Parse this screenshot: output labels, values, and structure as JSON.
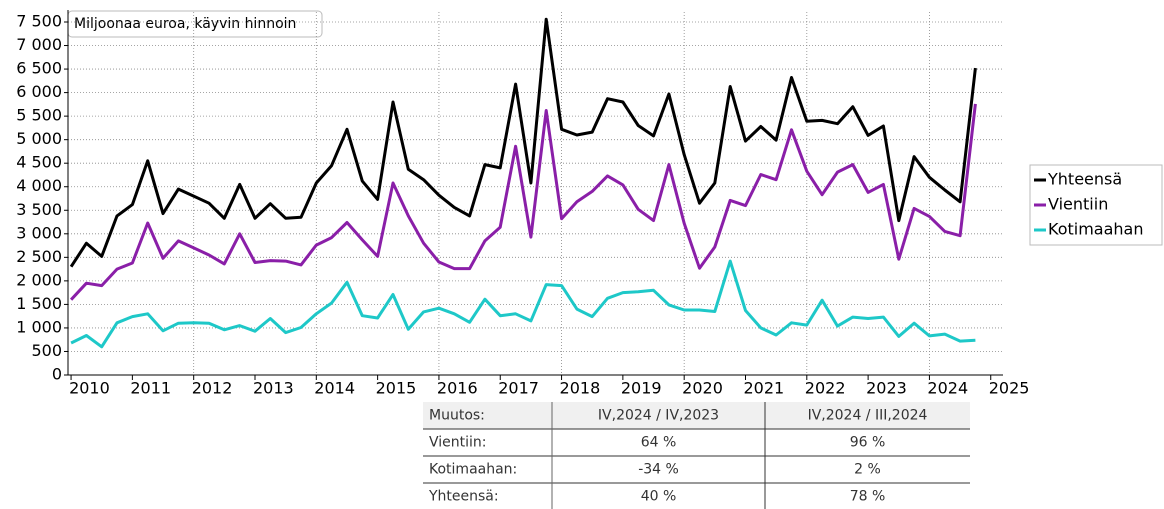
{
  "chart_data": {
    "type": "line",
    "annotation": "Miljoonaa euroa, käyvin hinnoin",
    "x": [
      2010,
      2010.25,
      2010.5,
      2010.75,
      2011,
      2011.25,
      2011.5,
      2011.75,
      2012,
      2012.25,
      2012.5,
      2012.75,
      2013,
      2013.25,
      2013.5,
      2013.75,
      2014,
      2014.25,
      2014.5,
      2014.75,
      2015,
      2015.25,
      2015.5,
      2015.75,
      2016,
      2016.25,
      2016.5,
      2016.75,
      2017,
      2017.25,
      2017.5,
      2017.75,
      2018,
      2018.25,
      2018.5,
      2018.75,
      2019,
      2019.25,
      2019.5,
      2019.75,
      2020,
      2020.25,
      2020.5,
      2020.75,
      2021,
      2021.25,
      2021.5,
      2021.75,
      2022,
      2022.25,
      2022.5,
      2022.75,
      2023,
      2023.25,
      2023.5,
      2023.75,
      2024,
      2024.25,
      2024.5,
      2024.75
    ],
    "series": [
      {
        "name": "Yhteensä",
        "color": "#000000",
        "values": [
          2300,
          2800,
          2520,
          3380,
          3620,
          4550,
          3430,
          3950,
          3800,
          3650,
          3330,
          4050,
          3330,
          3640,
          3330,
          3350,
          4080,
          4450,
          5220,
          4120,
          3730,
          5800,
          4370,
          4150,
          3820,
          3560,
          3380,
          4470,
          4400,
          6180,
          4080,
          7560,
          5220,
          5100,
          5160,
          5870,
          5800,
          5300,
          5080,
          5970,
          4680,
          3650,
          4080,
          6130,
          4970,
          5280,
          4990,
          6320,
          5390,
          5410,
          5340,
          5700,
          5090,
          5290,
          3280,
          4640,
          4200,
          3930,
          3680,
          6520
        ]
      },
      {
        "name": "Vientiin",
        "color": "#8a1fa8",
        "values": [
          1600,
          1950,
          1900,
          2250,
          2380,
          3230,
          2480,
          2850,
          2700,
          2550,
          2360,
          3000,
          2390,
          2430,
          2420,
          2340,
          2760,
          2920,
          3240,
          2870,
          2520,
          4080,
          3380,
          2800,
          2400,
          2260,
          2260,
          2850,
          3140,
          4860,
          2930,
          5620,
          3320,
          3680,
          3900,
          4230,
          4040,
          3520,
          3280,
          4470,
          3220,
          2270,
          2720,
          3710,
          3600,
          4260,
          4150,
          5210,
          4330,
          3830,
          4310,
          4470,
          3880,
          4050,
          2460,
          3540,
          3370,
          3050,
          2960,
          5760
        ]
      },
      {
        "name": "Kotimaahan",
        "color": "#1ec8c8",
        "values": [
          680,
          840,
          600,
          1110,
          1240,
          1300,
          940,
          1100,
          1110,
          1100,
          960,
          1050,
          930,
          1200,
          900,
          1010,
          1300,
          1530,
          1970,
          1260,
          1210,
          1710,
          970,
          1340,
          1420,
          1300,
          1120,
          1610,
          1260,
          1300,
          1150,
          1920,
          1900,
          1400,
          1240,
          1630,
          1750,
          1770,
          1800,
          1490,
          1380,
          1380,
          1350,
          2420,
          1370,
          1000,
          850,
          1110,
          1060,
          1590,
          1040,
          1230,
          1200,
          1230,
          820,
          1100,
          830,
          870,
          720,
          740
        ]
      }
    ],
    "xlim": [
      2009.95,
      2025.2
    ],
    "xticks": [
      2010,
      2011,
      2012,
      2013,
      2014,
      2015,
      2016,
      2017,
      2018,
      2019,
      2020,
      2021,
      2022,
      2023,
      2024,
      2025
    ],
    "ylim": [
      0,
      7500
    ],
    "yticks": [
      0,
      500,
      {
        "value": 1000,
        "label": "1 000"
      },
      {
        "value": 1500,
        "label": "1 500"
      },
      {
        "value": 2000,
        "label": "2 000"
      },
      {
        "value": 2500,
        "label": "2 500"
      },
      {
        "value": 3000,
        "label": "3 000"
      },
      {
        "value": 3500,
        "label": "3 500"
      },
      {
        "value": 4000,
        "label": "4 000"
      },
      {
        "value": 4500,
        "label": "4 500"
      },
      {
        "value": 5000,
        "label": "5 000"
      },
      {
        "value": 5500,
        "label": "5 500"
      },
      {
        "value": 6000,
        "label": "6 000"
      },
      {
        "value": 6500,
        "label": "6 500"
      },
      {
        "value": 7000,
        "label": "7 000"
      },
      {
        "value": 7500,
        "label": "7 500"
      }
    ],
    "grid": true,
    "legend": "right"
  },
  "table": {
    "header": [
      "Muutos:",
      "IV,2024 / IV,2023",
      "IV,2024 / III,2024"
    ],
    "rows": [
      [
        "Vientiin:",
        "64 %",
        "96 %"
      ],
      [
        "Kotimaahan:",
        "-34 %",
        "2 %"
      ],
      [
        "Yhteensä:",
        "40 %",
        "78 %"
      ]
    ]
  }
}
